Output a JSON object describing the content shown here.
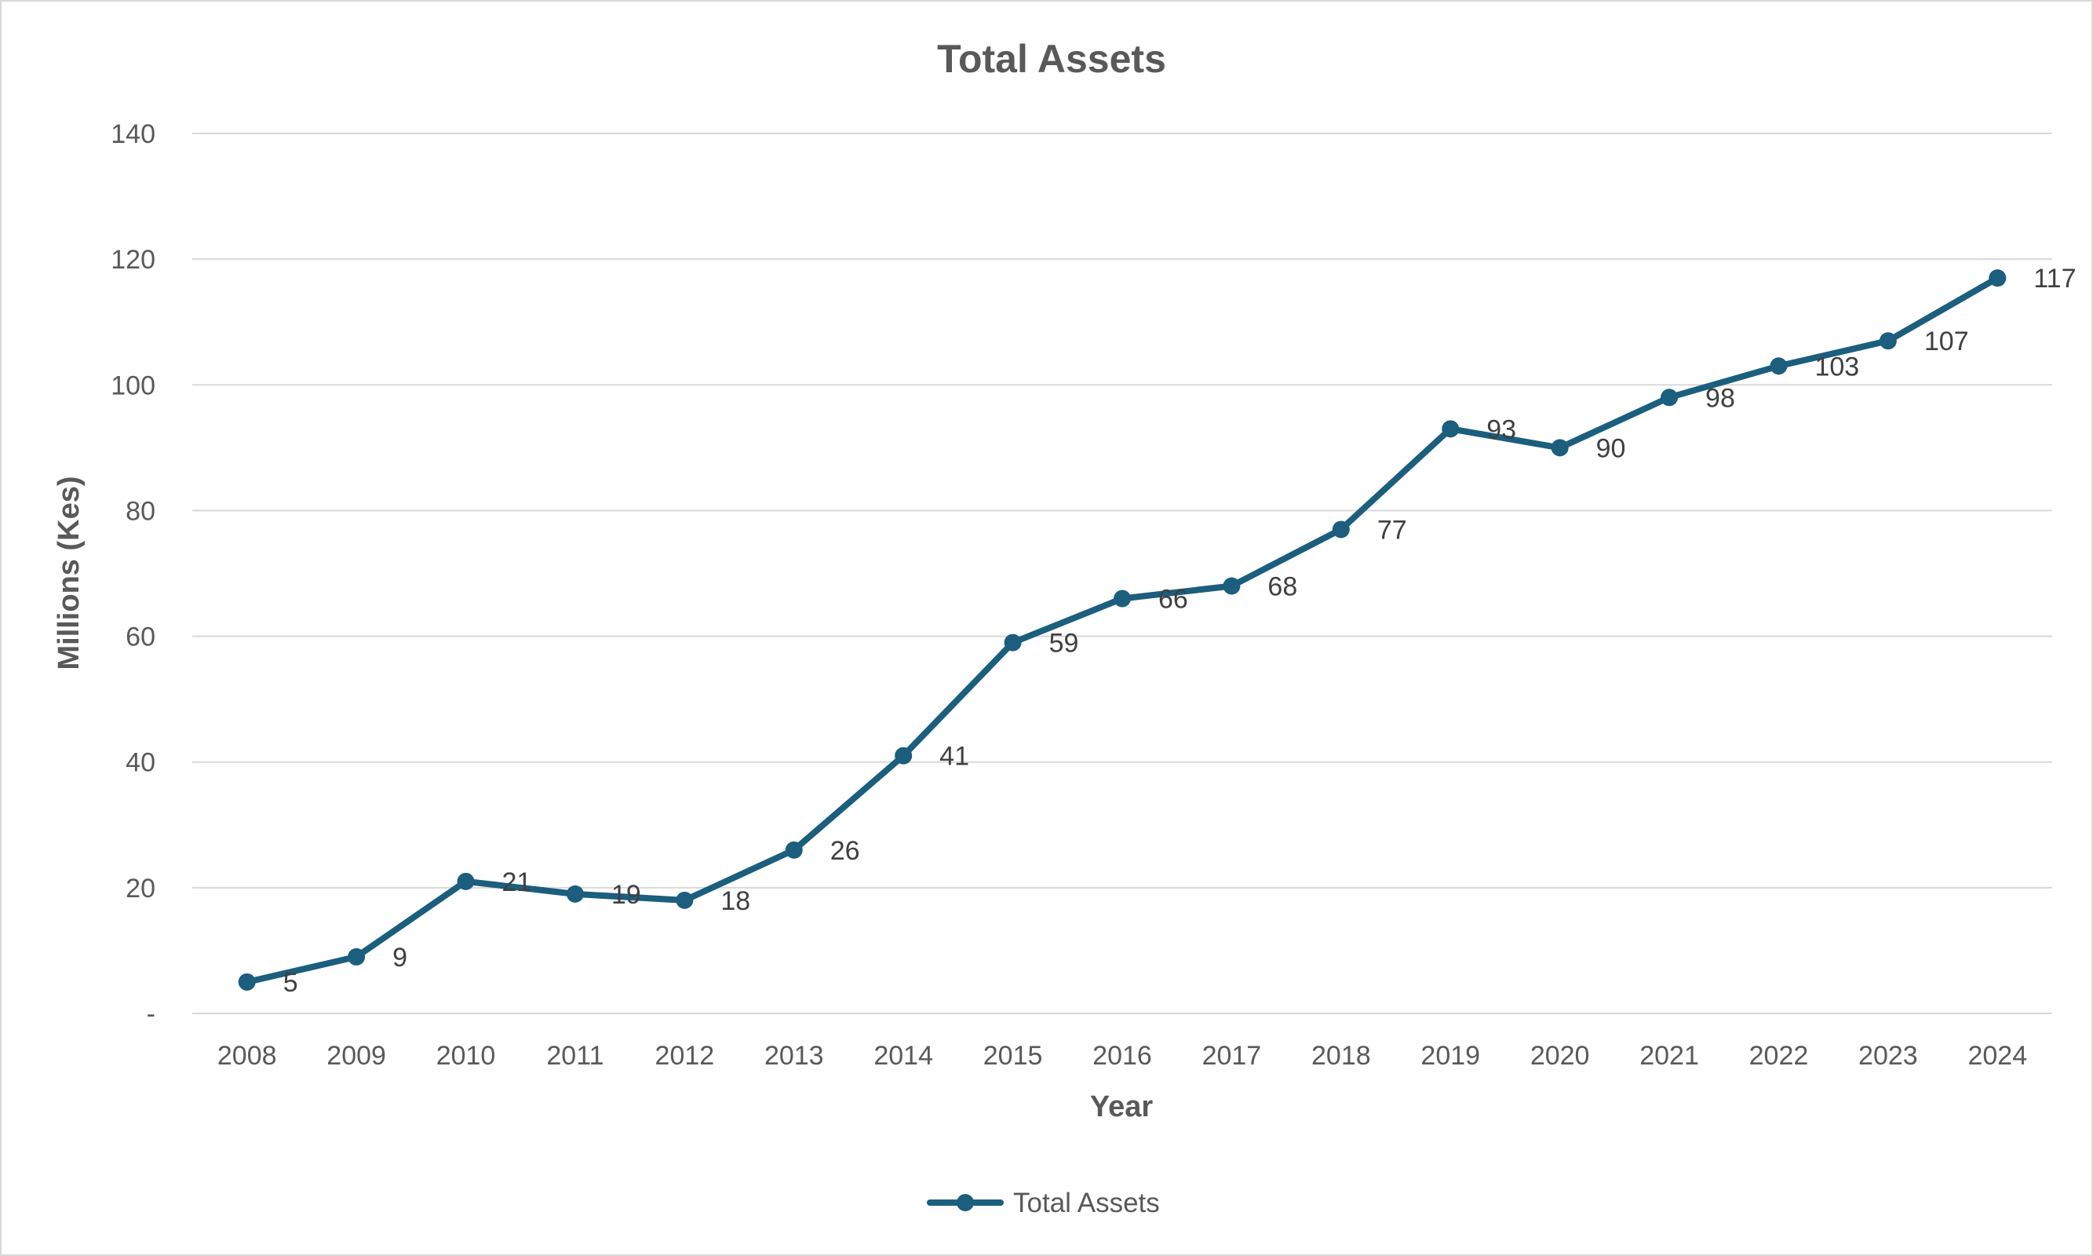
{
  "chart_data": {
    "type": "line",
    "title": "Total Assets",
    "xlabel": "Year",
    "ylabel": "Millions (Kes)",
    "categories": [
      "2008",
      "2009",
      "2010",
      "2011",
      "2012",
      "2013",
      "2014",
      "2015",
      "2016",
      "2017",
      "2018",
      "2019",
      "2020",
      "2021",
      "2022",
      "2023",
      "2024"
    ],
    "series": [
      {
        "name": "Total Assets",
        "values": [
          5,
          9,
          21,
          19,
          18,
          26,
          41,
          59,
          66,
          68,
          77,
          93,
          90,
          98,
          103,
          107,
          117
        ],
        "color": "#1b5e7e"
      }
    ],
    "data_labels": [
      "5",
      "9",
      "21",
      "19",
      "18",
      "26",
      "41",
      "59",
      "66",
      "68",
      "77",
      "93",
      "90",
      "98",
      "103",
      "107",
      "117"
    ],
    "ylim": [
      0,
      140
    ],
    "yticks": [
      0,
      20,
      40,
      60,
      80,
      100,
      120,
      140
    ],
    "ytick_labels": [
      "-",
      "20",
      "40",
      "60",
      "80",
      "100",
      "120",
      "140"
    ],
    "grid": true,
    "legend_position": "bottom",
    "colors": {
      "series": "#1b5e7e",
      "grid": "#d9d9d9",
      "text": "#595959"
    }
  }
}
